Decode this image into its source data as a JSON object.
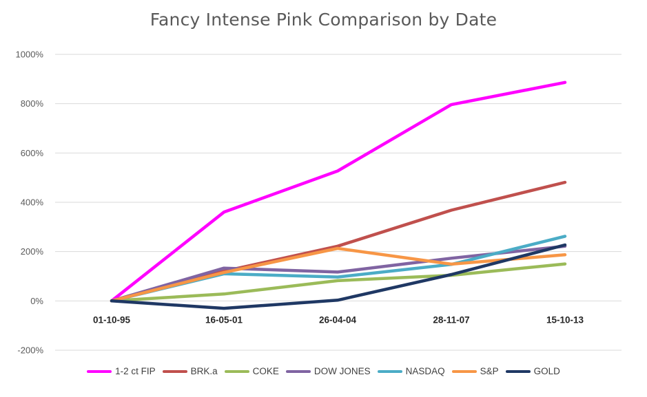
{
  "chart_data": {
    "type": "line",
    "title": "Fancy Intense Pink Comparison  by Date",
    "categories": [
      "01-10-95",
      "16-05-01",
      "26-04-04",
      "28-11-07",
      "15-10-13"
    ],
    "ylim": [
      -200,
      1000
    ],
    "yticks": [
      -200,
      0,
      200,
      400,
      600,
      800,
      1000
    ],
    "ytick_labels": [
      "-200%",
      "0%",
      "200%",
      "400%",
      "600%",
      "800%",
      "1000%"
    ],
    "y_unit": "%",
    "grid": true,
    "legend_position": "bottom",
    "series": [
      {
        "name": "1-2 ct FIP",
        "color": "#ff00ff",
        "values": [
          0,
          360,
          527,
          796,
          886
        ]
      },
      {
        "name": "BRK.a",
        "color": "#c0504d",
        "values": [
          0,
          120,
          222,
          368,
          481
        ]
      },
      {
        "name": "COKE",
        "color": "#9bbb59",
        "values": [
          0,
          28,
          82,
          104,
          150
        ]
      },
      {
        "name": "DOW JONES",
        "color": "#8064a2",
        "values": [
          0,
          133,
          117,
          173,
          222
        ]
      },
      {
        "name": "NASDAQ",
        "color": "#4bacc6",
        "values": [
          0,
          110,
          97,
          148,
          262
        ]
      },
      {
        "name": "S&P",
        "color": "#f79646",
        "values": [
          0,
          115,
          213,
          149,
          187
        ]
      },
      {
        "name": "GOLD",
        "color": "#1f3864",
        "values": [
          0,
          -30,
          3,
          107,
          227
        ]
      }
    ]
  }
}
